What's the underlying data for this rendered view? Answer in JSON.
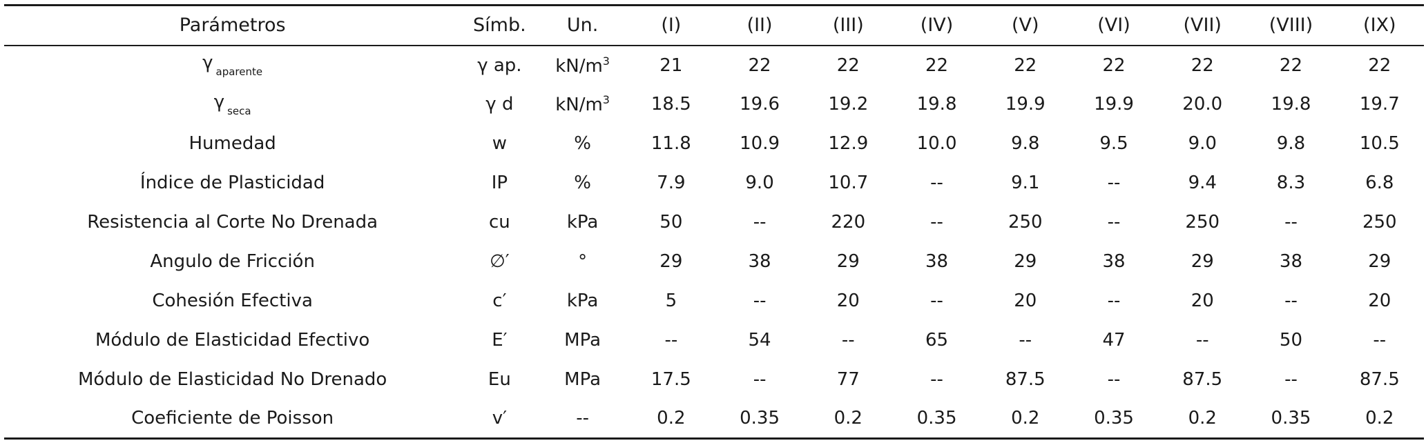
{
  "columns": [
    "Parámetros",
    "Símb.",
    "Un.",
    "(I)",
    "(II)",
    "(III)",
    "(IV)",
    "(V)",
    "(VI)",
    "(VII)",
    "(VIII)",
    "(IX)"
  ],
  "rows": [
    {
      "param": {
        "main": "γ",
        "sub": "aparente"
      },
      "symbol": "γ ap.",
      "unit": {
        "main": "kN/m",
        "sup": "3"
      },
      "values": [
        "21",
        "22",
        "22",
        "22",
        "22",
        "22",
        "22",
        "22",
        "22"
      ]
    },
    {
      "param": {
        "main": "γ",
        "sub": "seca"
      },
      "symbol": "γ d",
      "unit": {
        "main": "kN/m",
        "sup": "3"
      },
      "values": [
        "18.5",
        "19.6",
        "19.2",
        "19.8",
        "19.9",
        "19.9",
        "20.0",
        "19.8",
        "19.7"
      ]
    },
    {
      "param": {
        "main": "Humedad"
      },
      "symbol": "w",
      "unit": {
        "main": "%"
      },
      "values": [
        "11.8",
        "10.9",
        "12.9",
        "10.0",
        "9.8",
        "9.5",
        "9.0",
        "9.8",
        "10.5"
      ]
    },
    {
      "param": {
        "main": "Índice de Plasticidad"
      },
      "symbol": "IP",
      "unit": {
        "main": "%"
      },
      "values": [
        "7.9",
        "9.0",
        "10.7",
        "--",
        "9.1",
        "--",
        "9.4",
        "8.3",
        "6.8"
      ]
    },
    {
      "param": {
        "main": "Resistencia al Corte No Drenada"
      },
      "symbol": "cu",
      "unit": {
        "main": "kPa"
      },
      "values": [
        "50",
        "--",
        "220",
        "--",
        "250",
        "--",
        "250",
        "--",
        "250"
      ]
    },
    {
      "param": {
        "main": "Angulo de Fricción"
      },
      "symbol": "∅′",
      "unit": {
        "main": "°"
      },
      "values": [
        "29",
        "38",
        "29",
        "38",
        "29",
        "38",
        "29",
        "38",
        "29"
      ]
    },
    {
      "param": {
        "main": "Cohesión Efectiva"
      },
      "symbol": "c′",
      "unit": {
        "main": "kPa"
      },
      "values": [
        "5",
        "--",
        "20",
        "--",
        "20",
        "--",
        "20",
        "--",
        "20"
      ]
    },
    {
      "param": {
        "main": "Módulo de Elasticidad Efectivo"
      },
      "symbol": "E′",
      "unit": {
        "main": "MPa"
      },
      "values": [
        "--",
        "54",
        "--",
        "65",
        "--",
        "47",
        "--",
        "50",
        "--"
      ]
    },
    {
      "param": {
        "main": "Módulo de Elasticidad No Drenado"
      },
      "symbol": "Eu",
      "unit": {
        "main": "MPa"
      },
      "values": [
        "17.5",
        "--",
        "77",
        "--",
        "87.5",
        "--",
        "87.5",
        "--",
        "87.5"
      ]
    },
    {
      "param": {
        "main": "Coeficiente de Poisson"
      },
      "symbol": "v′",
      "unit": {
        "main": "--"
      },
      "values": [
        "0.2",
        "0.35",
        "0.2",
        "0.35",
        "0.2",
        "0.35",
        "0.2",
        "0.35",
        "0.2"
      ]
    }
  ]
}
